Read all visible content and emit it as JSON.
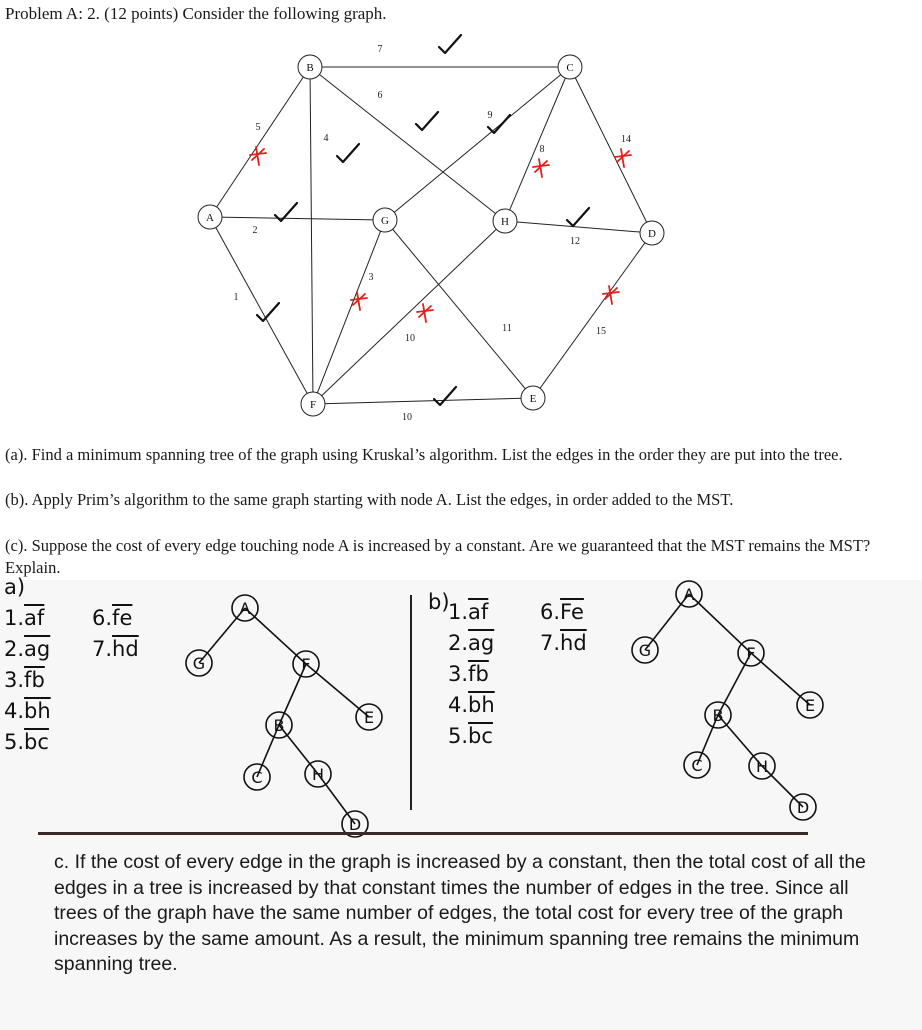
{
  "header": {
    "title": "Problem A: 2. (12 points) Consider the following graph."
  },
  "graph": {
    "nodes": [
      "A",
      "B",
      "C",
      "D",
      "E",
      "F",
      "G",
      "H"
    ],
    "edges": [
      {
        "from": "A",
        "to": "B",
        "weight": "5",
        "mark": "x"
      },
      {
        "from": "A",
        "to": "G",
        "weight": "2",
        "mark": "check"
      },
      {
        "from": "A",
        "to": "F",
        "weight": "1",
        "mark": "check"
      },
      {
        "from": "B",
        "to": "C",
        "weight": "7",
        "mark": "check"
      },
      {
        "from": "B",
        "to": "H",
        "weight": "6",
        "mark": "check"
      },
      {
        "from": "B",
        "to": "F",
        "weight": "4",
        "mark": "check"
      },
      {
        "from": "G",
        "to": "C",
        "weight": "9",
        "mark": "check"
      },
      {
        "from": "C",
        "to": "H",
        "weight": "8",
        "mark": "x"
      },
      {
        "from": "C",
        "to": "D",
        "weight": "14",
        "mark": "x"
      },
      {
        "from": "H",
        "to": "D",
        "weight": "12",
        "mark": "check"
      },
      {
        "from": "G",
        "to": "F",
        "weight": "3",
        "mark": "x"
      },
      {
        "from": "F",
        "to": "H",
        "weight": "10",
        "mark": "x"
      },
      {
        "from": "G",
        "to": "E",
        "weight": "11",
        "mark": "none"
      },
      {
        "from": "D",
        "to": "E",
        "weight": "15",
        "mark": "x"
      },
      {
        "from": "F",
        "to": "E",
        "weight": "10",
        "mark": "check"
      }
    ]
  },
  "questions": {
    "a": "(a). Find a minimum spanning tree of the graph using Kruskal’s algorithm. List the edges in the order they are put into the tree.",
    "b": "(b). Apply Prim’s algorithm to the same graph starting with node A. List the edges, in order added to the MST.",
    "c": "(c). Suppose the cost of every edge touching node A is increased by a constant. Are we guaranteed that the MST remains the MST? Explain."
  },
  "answer_a": {
    "label": "a)",
    "list": [
      {
        "num": "1.",
        "edge": "af"
      },
      {
        "num": "2.",
        "edge": "ag"
      },
      {
        "num": "3.",
        "edge": "fb"
      },
      {
        "num": "4.",
        "edge": "bh"
      },
      {
        "num": "5.",
        "edge": "bc"
      },
      {
        "num": "6.",
        "edge": "fe"
      },
      {
        "num": "7.",
        "edge": "hd"
      }
    ]
  },
  "answer_b": {
    "label": "b)",
    "list": [
      {
        "num": "1.",
        "edge": "af"
      },
      {
        "num": "2.",
        "edge": "ag"
      },
      {
        "num": "3.",
        "edge": "fb"
      },
      {
        "num": "4.",
        "edge": "bh"
      },
      {
        "num": "5.",
        "edge": "bc"
      },
      {
        "num": "6.",
        "edge": "Fe"
      },
      {
        "num": "7.",
        "edge": "hd"
      }
    ]
  },
  "answer_c": "c. If the cost of every edge in the graph is increased by a constant, then the total cost of all the edges in a tree is increased by that constant times the number of edges in the tree. Since all trees of the graph have the same number of edges, the total cost for every tree of the graph increases by the same amount. As a result, the minimum spanning tree remains the minimum spanning tree.",
  "colors": {
    "ink": "#111111",
    "x_mark": "#e0201a",
    "rule": "#3a2a2a"
  }
}
